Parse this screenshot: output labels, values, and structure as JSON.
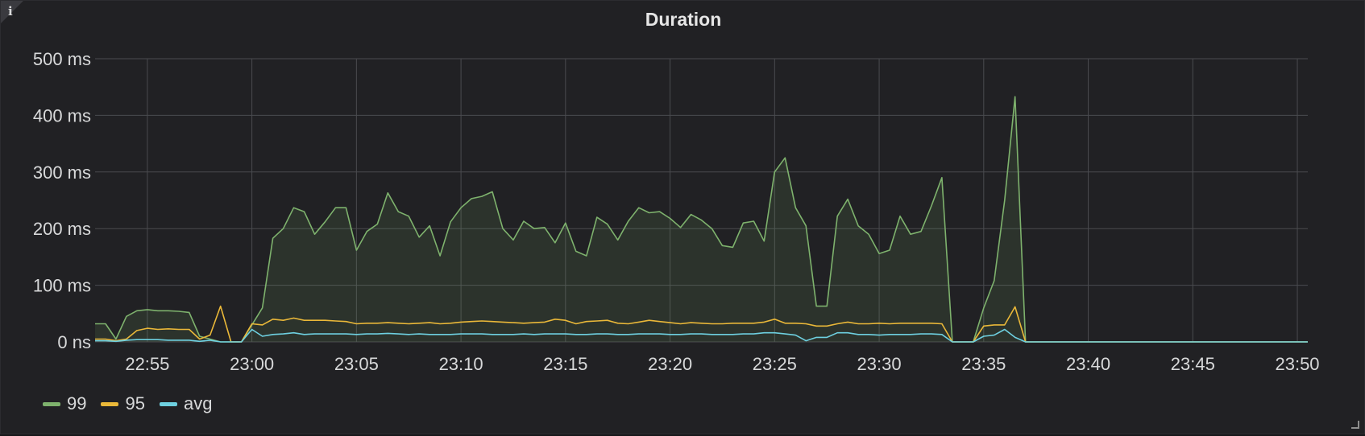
{
  "panel": {
    "title": "Duration",
    "info_icon": "i"
  },
  "colors": {
    "p99": "#7eb26d",
    "p95": "#eab839",
    "avg": "#6ed0e0",
    "grid": "#4a4b4f",
    "bg": "#212124"
  },
  "chart_data": {
    "type": "line",
    "title": "Duration",
    "ylim": [
      0,
      500
    ],
    "yticks": [
      0,
      100,
      200,
      300,
      400,
      500
    ],
    "ytick_labels": [
      "0 ns",
      "100 ms",
      "200 ms",
      "300 ms",
      "400 ms",
      "500 ms"
    ],
    "xlim_minutes": [
      -7.5,
      50.5
    ],
    "xtick_labels": [
      "22:55",
      "23:00",
      "23:05",
      "23:10",
      "23:15",
      "23:20",
      "23:25",
      "23:30",
      "23:35",
      "23:40",
      "23:45",
      "23:50"
    ],
    "xticks_minutes": [
      -5,
      0,
      5,
      10,
      15,
      20,
      25,
      30,
      35,
      40,
      45,
      50
    ],
    "grid": true,
    "legend_position": "bottom-left",
    "series": [
      {
        "name": "99",
        "fill": true,
        "points": [
          [
            -7.5,
            32
          ],
          [
            -7.0,
            32
          ],
          [
            -6.5,
            5
          ],
          [
            -6.0,
            45
          ],
          [
            -5.5,
            55
          ],
          [
            -5.0,
            57
          ],
          [
            -4.5,
            55
          ],
          [
            -4.0,
            55
          ],
          [
            -3.5,
            54
          ],
          [
            -3.0,
            52
          ],
          [
            -2.5,
            10
          ],
          [
            -2.0,
            5
          ],
          [
            -1.5,
            0
          ],
          [
            -0.5,
            0
          ],
          [
            0.0,
            30
          ],
          [
            0.5,
            60
          ],
          [
            1.0,
            183
          ],
          [
            1.5,
            200
          ],
          [
            2.0,
            237
          ],
          [
            2.5,
            230
          ],
          [
            3.0,
            190
          ],
          [
            3.5,
            212
          ],
          [
            4.0,
            237
          ],
          [
            4.5,
            237
          ],
          [
            5.0,
            162
          ],
          [
            5.5,
            195
          ],
          [
            6.0,
            208
          ],
          [
            6.5,
            263
          ],
          [
            7.0,
            230
          ],
          [
            7.5,
            222
          ],
          [
            8.0,
            185
          ],
          [
            8.5,
            205
          ],
          [
            9.0,
            152
          ],
          [
            9.5,
            212
          ],
          [
            10.0,
            237
          ],
          [
            10.5,
            253
          ],
          [
            11.0,
            257
          ],
          [
            11.5,
            265
          ],
          [
            12.0,
            200
          ],
          [
            12.5,
            180
          ],
          [
            13.0,
            213
          ],
          [
            13.5,
            200
          ],
          [
            14.0,
            202
          ],
          [
            14.5,
            175
          ],
          [
            15.0,
            210
          ],
          [
            15.5,
            160
          ],
          [
            16.0,
            152
          ],
          [
            16.5,
            220
          ],
          [
            17.0,
            208
          ],
          [
            17.5,
            180
          ],
          [
            18.0,
            213
          ],
          [
            18.5,
            237
          ],
          [
            19.0,
            228
          ],
          [
            19.5,
            230
          ],
          [
            20.0,
            218
          ],
          [
            20.5,
            202
          ],
          [
            21.0,
            225
          ],
          [
            21.5,
            215
          ],
          [
            22.0,
            200
          ],
          [
            22.5,
            170
          ],
          [
            23.0,
            167
          ],
          [
            23.5,
            210
          ],
          [
            24.0,
            213
          ],
          [
            24.5,
            178
          ],
          [
            25.0,
            300
          ],
          [
            25.5,
            325
          ],
          [
            26.0,
            237
          ],
          [
            26.5,
            205
          ],
          [
            27.0,
            63
          ],
          [
            27.5,
            63
          ],
          [
            28.0,
            222
          ],
          [
            28.5,
            252
          ],
          [
            29.0,
            205
          ],
          [
            29.5,
            190
          ],
          [
            30.0,
            156
          ],
          [
            30.5,
            162
          ],
          [
            31.0,
            222
          ],
          [
            31.5,
            190
          ],
          [
            32.0,
            195
          ],
          [
            32.5,
            240
          ],
          [
            33.0,
            290
          ],
          [
            33.5,
            0
          ],
          [
            34.0,
            0
          ],
          [
            34.5,
            0
          ],
          [
            35.0,
            60
          ],
          [
            35.5,
            108
          ],
          [
            36.0,
            250
          ],
          [
            36.5,
            433
          ],
          [
            37.0,
            0
          ],
          [
            50.5,
            0
          ]
        ]
      },
      {
        "name": "95",
        "fill": false,
        "points": [
          [
            -7.5,
            5
          ],
          [
            -7.0,
            5
          ],
          [
            -6.5,
            2
          ],
          [
            -6.0,
            5
          ],
          [
            -5.5,
            20
          ],
          [
            -5.0,
            24
          ],
          [
            -4.5,
            22
          ],
          [
            -4.0,
            23
          ],
          [
            -3.5,
            22
          ],
          [
            -3.0,
            22
          ],
          [
            -2.5,
            5
          ],
          [
            -2.0,
            12
          ],
          [
            -1.5,
            63
          ],
          [
            -1.0,
            0
          ],
          [
            -0.5,
            0
          ],
          [
            0.0,
            32
          ],
          [
            0.5,
            30
          ],
          [
            1.0,
            40
          ],
          [
            1.5,
            38
          ],
          [
            2.0,
            42
          ],
          [
            2.5,
            38
          ],
          [
            3.0,
            38
          ],
          [
            3.5,
            38
          ],
          [
            4.0,
            37
          ],
          [
            4.5,
            36
          ],
          [
            5.0,
            32
          ],
          [
            5.5,
            33
          ],
          [
            6.0,
            33
          ],
          [
            6.5,
            34
          ],
          [
            7.0,
            33
          ],
          [
            7.5,
            32
          ],
          [
            8.0,
            33
          ],
          [
            8.5,
            34
          ],
          [
            9.0,
            32
          ],
          [
            9.5,
            33
          ],
          [
            10.0,
            35
          ],
          [
            10.5,
            36
          ],
          [
            11.0,
            37
          ],
          [
            11.5,
            36
          ],
          [
            12.0,
            35
          ],
          [
            12.5,
            34
          ],
          [
            13.0,
            33
          ],
          [
            13.5,
            34
          ],
          [
            14.0,
            35
          ],
          [
            14.5,
            40
          ],
          [
            15.0,
            38
          ],
          [
            15.5,
            32
          ],
          [
            16.0,
            36
          ],
          [
            16.5,
            37
          ],
          [
            17.0,
            38
          ],
          [
            17.5,
            33
          ],
          [
            18.0,
            32
          ],
          [
            18.5,
            35
          ],
          [
            19.0,
            38
          ],
          [
            19.5,
            36
          ],
          [
            20.0,
            34
          ],
          [
            20.5,
            32
          ],
          [
            21.0,
            34
          ],
          [
            21.5,
            33
          ],
          [
            22.0,
            32
          ],
          [
            22.5,
            32
          ],
          [
            23.0,
            33
          ],
          [
            23.5,
            33
          ],
          [
            24.0,
            33
          ],
          [
            24.5,
            35
          ],
          [
            25.0,
            40
          ],
          [
            25.5,
            33
          ],
          [
            26.0,
            33
          ],
          [
            26.5,
            32
          ],
          [
            27.0,
            28
          ],
          [
            27.5,
            28
          ],
          [
            28.0,
            32
          ],
          [
            28.5,
            35
          ],
          [
            29.0,
            32
          ],
          [
            29.5,
            32
          ],
          [
            30.0,
            33
          ],
          [
            30.5,
            32
          ],
          [
            31.0,
            33
          ],
          [
            31.5,
            33
          ],
          [
            32.0,
            33
          ],
          [
            32.5,
            33
          ],
          [
            33.0,
            32
          ],
          [
            33.5,
            0
          ],
          [
            34.0,
            0
          ],
          [
            34.5,
            0
          ],
          [
            35.0,
            28
          ],
          [
            35.5,
            30
          ],
          [
            36.0,
            30
          ],
          [
            36.5,
            62
          ],
          [
            37.0,
            0
          ],
          [
            50.5,
            0
          ]
        ]
      },
      {
        "name": "avg",
        "fill": false,
        "points": [
          [
            -7.5,
            2
          ],
          [
            -7.0,
            2
          ],
          [
            -6.5,
            1
          ],
          [
            -6.0,
            3
          ],
          [
            -5.5,
            4
          ],
          [
            -5.0,
            4
          ],
          [
            -4.5,
            4
          ],
          [
            -4.0,
            3
          ],
          [
            -3.5,
            3
          ],
          [
            -3.0,
            3
          ],
          [
            -2.5,
            1
          ],
          [
            -2.0,
            3
          ],
          [
            -1.5,
            0
          ],
          [
            -0.5,
            0
          ],
          [
            0.0,
            22
          ],
          [
            0.5,
            10
          ],
          [
            1.0,
            13
          ],
          [
            1.5,
            14
          ],
          [
            2.0,
            16
          ],
          [
            2.5,
            13
          ],
          [
            3.0,
            14
          ],
          [
            3.5,
            14
          ],
          [
            4.0,
            14
          ],
          [
            4.5,
            14
          ],
          [
            5.0,
            13
          ],
          [
            5.5,
            14
          ],
          [
            6.0,
            14
          ],
          [
            6.5,
            15
          ],
          [
            7.0,
            14
          ],
          [
            7.5,
            13
          ],
          [
            8.0,
            14
          ],
          [
            8.5,
            13
          ],
          [
            9.0,
            13
          ],
          [
            9.5,
            13
          ],
          [
            10.0,
            14
          ],
          [
            10.5,
            14
          ],
          [
            11.0,
            14
          ],
          [
            11.5,
            13
          ],
          [
            12.0,
            13
          ],
          [
            12.5,
            13
          ],
          [
            13.0,
            14
          ],
          [
            13.5,
            13
          ],
          [
            14.0,
            14
          ],
          [
            14.5,
            14
          ],
          [
            15.0,
            14
          ],
          [
            15.5,
            13
          ],
          [
            16.0,
            13
          ],
          [
            16.5,
            14
          ],
          [
            17.0,
            14
          ],
          [
            17.5,
            13
          ],
          [
            18.0,
            13
          ],
          [
            18.5,
            14
          ],
          [
            19.0,
            14
          ],
          [
            19.5,
            14
          ],
          [
            20.0,
            13
          ],
          [
            20.5,
            13
          ],
          [
            21.0,
            14
          ],
          [
            21.5,
            14
          ],
          [
            22.0,
            13
          ],
          [
            22.5,
            13
          ],
          [
            23.0,
            13
          ],
          [
            23.5,
            14
          ],
          [
            24.0,
            14
          ],
          [
            24.5,
            16
          ],
          [
            25.0,
            16
          ],
          [
            25.5,
            14
          ],
          [
            26.0,
            12
          ],
          [
            26.5,
            2
          ],
          [
            27.0,
            8
          ],
          [
            27.5,
            8
          ],
          [
            28.0,
            16
          ],
          [
            28.5,
            16
          ],
          [
            29.0,
            13
          ],
          [
            29.5,
            13
          ],
          [
            30.0,
            12
          ],
          [
            30.5,
            13
          ],
          [
            31.0,
            13
          ],
          [
            31.5,
            13
          ],
          [
            32.0,
            14
          ],
          [
            32.5,
            14
          ],
          [
            33.0,
            13
          ],
          [
            33.5,
            0
          ],
          [
            34.0,
            0
          ],
          [
            34.5,
            0
          ],
          [
            35.0,
            10
          ],
          [
            35.5,
            12
          ],
          [
            36.0,
            22
          ],
          [
            36.5,
            8
          ],
          [
            37.0,
            0
          ],
          [
            50.5,
            0
          ]
        ]
      }
    ]
  },
  "legend": [
    {
      "label": "99",
      "color_key": "p99"
    },
    {
      "label": "95",
      "color_key": "p95"
    },
    {
      "label": "avg",
      "color_key": "avg"
    }
  ]
}
